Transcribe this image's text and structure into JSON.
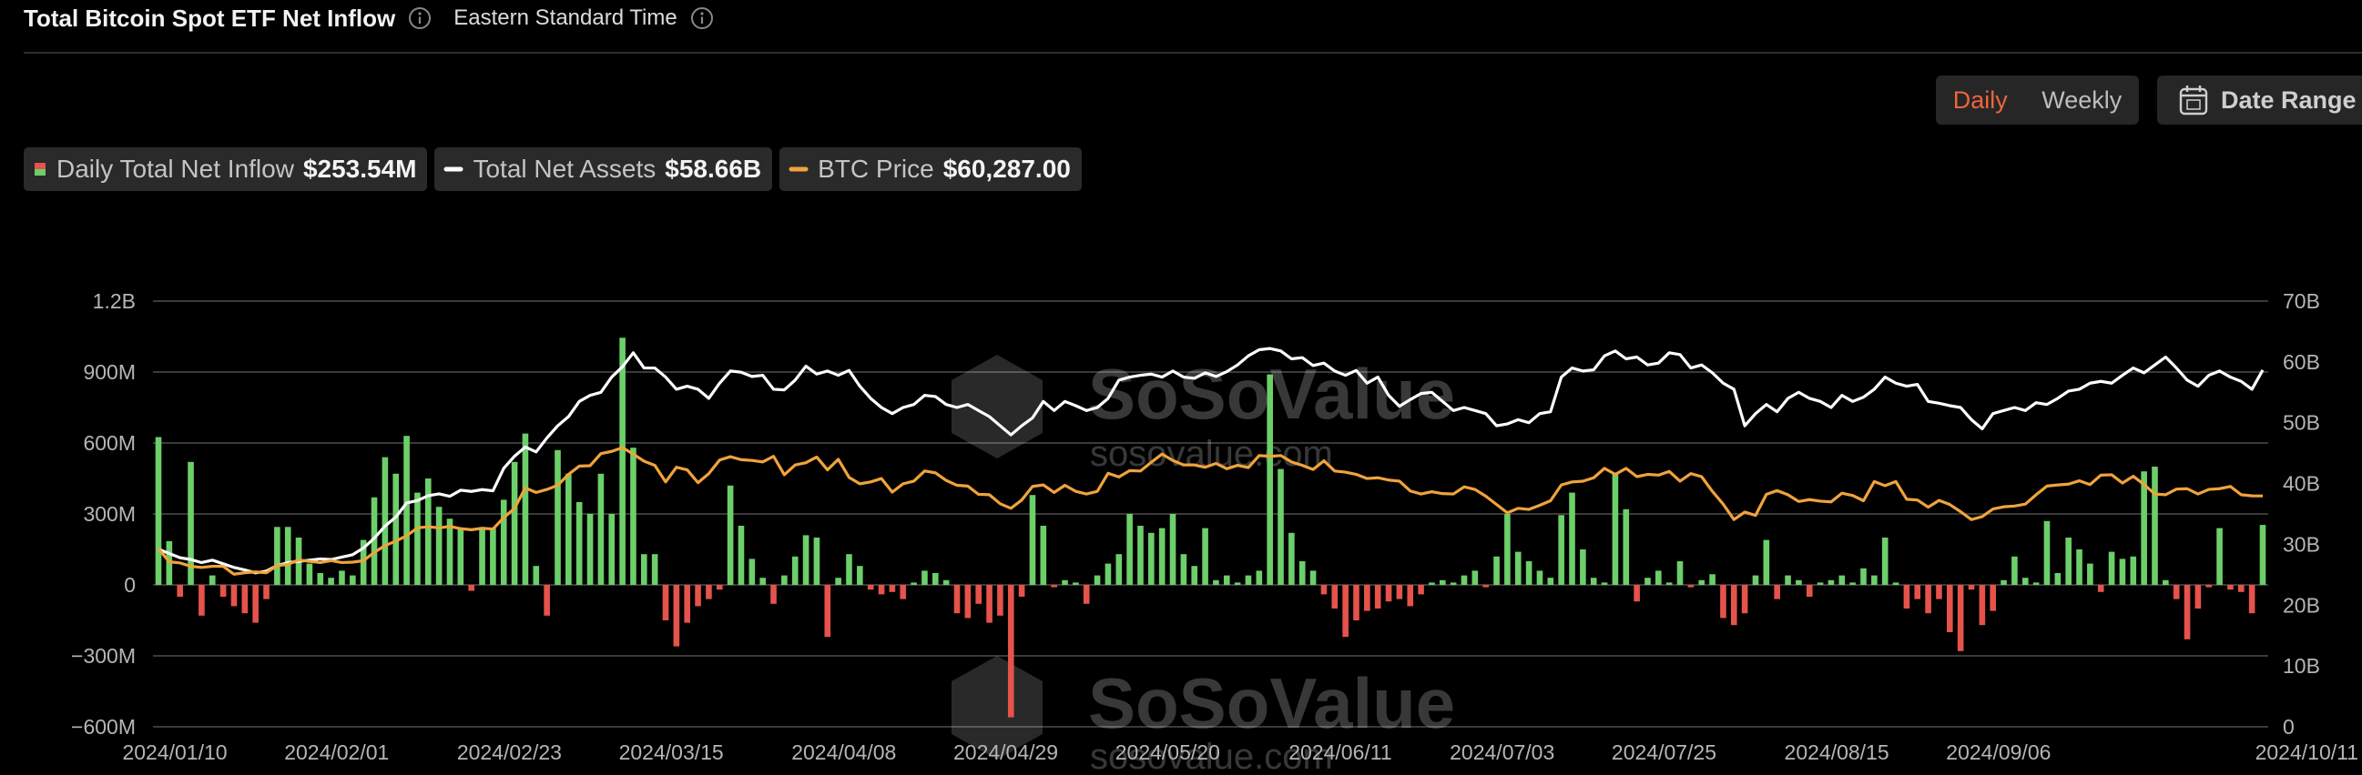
{
  "header": {
    "title": "Total Bitcoin Spot ETF Net Inflow",
    "timezone": "Eastern Standard Time"
  },
  "controls": {
    "daily": "Daily",
    "weekly": "Weekly",
    "date_range": "Date Range"
  },
  "watermark": {
    "brand": "SoSoValue",
    "site": "sosovalue.com"
  },
  "chart_data": {
    "type": "bar",
    "categories": [
      "2024/01/10",
      null,
      null,
      null,
      null,
      null,
      null,
      null,
      null,
      null,
      null,
      null,
      null,
      null,
      null,
      "2024/02/01",
      null,
      null,
      null,
      null,
      null,
      null,
      null,
      null,
      null,
      null,
      null,
      null,
      null,
      null,
      null,
      "2024/02/23",
      null,
      null,
      null,
      null,
      null,
      null,
      null,
      null,
      null,
      null,
      null,
      null,
      null,
      null,
      "2024/03/15",
      null,
      null,
      null,
      null,
      null,
      null,
      null,
      null,
      null,
      null,
      null,
      null,
      null,
      null,
      null,
      "2024/04/08",
      null,
      null,
      null,
      null,
      null,
      null,
      null,
      null,
      null,
      null,
      null,
      null,
      null,
      null,
      "2024/04/29",
      null,
      null,
      null,
      null,
      null,
      null,
      null,
      null,
      null,
      null,
      null,
      null,
      null,
      null,
      "2024/05/20",
      null,
      null,
      null,
      null,
      null,
      null,
      null,
      null,
      null,
      null,
      null,
      null,
      null,
      null,
      null,
      "2024/06/11",
      null,
      null,
      null,
      null,
      null,
      null,
      null,
      null,
      null,
      null,
      null,
      null,
      null,
      null,
      "2024/07/03",
      null,
      null,
      null,
      null,
      null,
      null,
      null,
      null,
      null,
      null,
      null,
      null,
      null,
      null,
      "2024/07/25",
      null,
      null,
      null,
      null,
      null,
      null,
      null,
      null,
      null,
      null,
      null,
      null,
      null,
      null,
      null,
      "2024/08/15",
      null,
      null,
      null,
      null,
      null,
      null,
      null,
      null,
      null,
      null,
      null,
      null,
      null,
      null,
      "2024/09/06",
      null,
      null,
      null,
      null,
      null,
      null,
      null,
      null,
      null,
      null,
      null,
      null,
      null,
      null,
      null,
      null,
      null,
      null,
      null,
      null,
      null,
      null,
      null,
      null,
      null,
      "2024/10/11"
    ],
    "series": [
      {
        "name": "Daily Total Net Inflow",
        "legend_value": "$253.54M",
        "type": "bar",
        "color": "#6ccf6a",
        "negative_color": "#e5534b",
        "values": [
          625,
          185,
          -50,
          520,
          -130,
          40,
          -50,
          -90,
          -120,
          -160,
          -60,
          245,
          245,
          200,
          90,
          50,
          30,
          60,
          40,
          190,
          370,
          540,
          470,
          630,
          390,
          450,
          330,
          280,
          240,
          -25,
          240,
          240,
          360,
          520,
          640,
          80,
          -130,
          570,
          470,
          350,
          300,
          470,
          300,
          1045,
          580,
          130,
          130,
          -150,
          -260,
          -160,
          -90,
          -60,
          -20,
          420,
          250,
          110,
          30,
          -80,
          40,
          120,
          210,
          200,
          -220,
          30,
          130,
          80,
          -20,
          -40,
          -30,
          -60,
          10,
          60,
          50,
          20,
          -120,
          -140,
          -80,
          -160,
          -130,
          -560,
          -50,
          380,
          250,
          -10,
          20,
          10,
          -80,
          40,
          90,
          130,
          300,
          250,
          220,
          240,
          300,
          130,
          80,
          240,
          20,
          40,
          10,
          40,
          60,
          890,
          490,
          220,
          100,
          60,
          -40,
          -100,
          -220,
          -150,
          -110,
          -100,
          -70,
          -60,
          -90,
          -40,
          10,
          20,
          10,
          40,
          60,
          -10,
          120,
          300,
          140,
          100,
          60,
          30,
          295,
          390,
          150,
          30,
          10,
          470,
          320,
          -70,
          30,
          60,
          10,
          100,
          -10,
          20,
          45,
          -140,
          -170,
          -120,
          40,
          190,
          -60,
          40,
          20,
          -50,
          10,
          20,
          40,
          10,
          70,
          40,
          200,
          10,
          -100,
          -60,
          -120,
          -60,
          -200,
          -280,
          -20,
          -170,
          -110,
          20,
          120,
          30,
          10,
          270,
          50,
          200,
          150,
          90,
          -30,
          140,
          110,
          120,
          480,
          500,
          20,
          -60,
          -230,
          -100,
          -10,
          240,
          -20,
          -30,
          -120,
          253.54
        ]
      },
      {
        "name": "Total Net Assets",
        "legend_value": "$58.66B",
        "type": "line",
        "axis": "y2",
        "color": "#ffffff",
        "values": [
          29.2,
          28.5,
          27.8,
          27.5,
          27.0,
          27.4,
          26.8,
          26.2,
          25.8,
          25.3,
          25.6,
          26.5,
          27.0,
          27.2,
          27.4,
          27.6,
          27.5,
          27.9,
          28.3,
          29.4,
          31.0,
          33.0,
          34.5,
          36.8,
          37.2,
          38.0,
          38.3,
          37.9,
          38.9,
          38.7,
          39.0,
          38.8,
          42.5,
          44.5,
          46.0,
          45.2,
          47.5,
          49.5,
          51.0,
          53.5,
          54.5,
          55.0,
          57.5,
          59.2,
          61.5,
          59.0,
          59.0,
          57.5,
          55.5,
          56.0,
          55.5,
          54.0,
          56.5,
          58.5,
          58.3,
          57.6,
          57.8,
          55.5,
          55.4,
          57.0,
          59.3,
          58.0,
          58.5,
          57.8,
          58.6,
          56.0,
          54.0,
          52.5,
          51.5,
          52.5,
          53.0,
          54.5,
          54.3,
          53.0,
          52.5,
          53.0,
          52.0,
          51.0,
          49.5,
          48.0,
          49.5,
          50.8,
          53.5,
          52.0,
          53.5,
          52.8,
          52.0,
          52.5,
          54.0,
          57.0,
          57.5,
          57.8,
          58.0,
          57.5,
          58.5,
          57.5,
          57.3,
          58.2,
          57.6,
          58.4,
          59.5,
          61.0,
          62.0,
          62.2,
          61.8,
          60.5,
          60.7,
          59.4,
          59.8,
          58.5,
          57.8,
          58.6,
          56.5,
          57.5,
          54.5,
          52.7,
          53.8,
          54.8,
          55.0,
          53.5,
          52.0,
          52.5,
          52.0,
          51.5,
          49.5,
          49.8,
          50.5,
          50.0,
          51.5,
          51.8,
          57.5,
          59.0,
          58.5,
          58.7,
          61.0,
          61.8,
          60.5,
          60.8,
          59.5,
          59.8,
          61.5,
          61.2,
          59.0,
          59.5,
          58.2,
          56.5,
          55.5,
          49.5,
          51.5,
          53.0,
          51.8,
          54.0,
          55.0,
          54.0,
          53.5,
          52.5,
          54.5,
          53.5,
          54.2,
          55.5,
          57.5,
          56.5,
          56.0,
          56.3,
          53.5,
          53.2,
          52.8,
          52.5,
          50.5,
          49.0,
          51.5,
          52.0,
          52.5,
          52.0,
          53.3,
          53.0,
          54.0,
          55.2,
          55.5,
          56.5,
          56.8,
          56.5,
          57.8,
          59.0,
          58.2,
          59.5,
          60.8,
          59.0,
          57.0,
          56.0,
          57.8,
          58.5,
          57.5,
          56.8,
          55.5,
          58.66
        ]
      },
      {
        "name": "BTC Price",
        "legend_value": "$60,287.00",
        "type": "line",
        "axis": "y3",
        "color": "#f0a33c",
        "values": [
          46300,
          42800,
          42500,
          41600,
          41300,
          41600,
          41600,
          39500,
          39900,
          40100,
          39900,
          41800,
          42100,
          43300,
          42900,
          42600,
          43100,
          42600,
          42700,
          43100,
          45300,
          47100,
          48300,
          49700,
          51800,
          52100,
          51800,
          52200,
          51600,
          51300,
          51700,
          51500,
          54500,
          57000,
          62400,
          61200,
          62000,
          63100,
          66000,
          68200,
          68300,
          71500,
          72100,
          73100,
          71400,
          69500,
          68400,
          64000,
          67900,
          67200,
          63800,
          66200,
          69800,
          70700,
          69900,
          69700,
          69300,
          70800,
          65900,
          68500,
          69100,
          70600,
          67200,
          70000,
          65200,
          63500,
          64000,
          64900,
          61300,
          63500,
          64200,
          66900,
          66400,
          64400,
          63100,
          62900,
          60700,
          60600,
          58200,
          57000,
          59200,
          62800,
          63200,
          61200,
          63100,
          61500,
          60800,
          61500,
          66300,
          65300,
          67000,
          66900,
          69200,
          71400,
          69700,
          68500,
          68500,
          67900,
          68900,
          67500,
          68400,
          67800,
          71000,
          70800,
          71000,
          69300,
          68400,
          67300,
          69600,
          66900,
          66600,
          66000,
          64900,
          65100,
          64500,
          64200,
          61600,
          60800,
          61400,
          60900,
          60800,
          62700,
          62000,
          60200,
          58000,
          55800,
          57000,
          56700,
          57800,
          59000,
          63200,
          64000,
          64200,
          65100,
          67600,
          66000,
          67600,
          65400,
          66000,
          65800,
          66800,
          64200,
          66200,
          65400,
          61500,
          58100,
          54000,
          56000,
          55100,
          60700,
          61700,
          60600,
          58800,
          59300,
          58900,
          58700,
          61000,
          60400,
          59000,
          64100,
          63000,
          64100,
          59400,
          59200,
          57300,
          59100,
          58000,
          56100,
          54000,
          54800,
          56800,
          57400,
          57600,
          58100,
          60600,
          62900,
          63200,
          63400,
          64300,
          63300,
          65800,
          65900,
          63700,
          65500,
          63300,
          60800,
          60600,
          62100,
          62200,
          60800,
          62000,
          62200,
          62800,
          60600,
          60300,
          60287
        ]
      }
    ],
    "ylim": [
      -600,
      1200
    ],
    "yticks": [
      {
        "value": 1200,
        "label": "1.2B"
      },
      {
        "value": 900,
        "label": "900M"
      },
      {
        "value": 600,
        "label": "600M"
      },
      {
        "value": 300,
        "label": "300M"
      },
      0,
      {
        "value": -300,
        "label": "−300M"
      },
      {
        "value": -600,
        "label": "−600M"
      }
    ],
    "y2lim": [
      0,
      70
    ],
    "y2ticks": [
      {
        "value": 70,
        "label": "70B"
      },
      {
        "value": 60,
        "label": "60B"
      },
      {
        "value": 50,
        "label": "50B"
      },
      {
        "value": 40,
        "label": "40B"
      },
      {
        "value": 30,
        "label": "30B"
      },
      {
        "value": 20,
        "label": "20B"
      },
      {
        "value": 10,
        "label": "10B"
      },
      0
    ],
    "y3lim": [
      -1000,
      112000
    ],
    "grid": true
  }
}
